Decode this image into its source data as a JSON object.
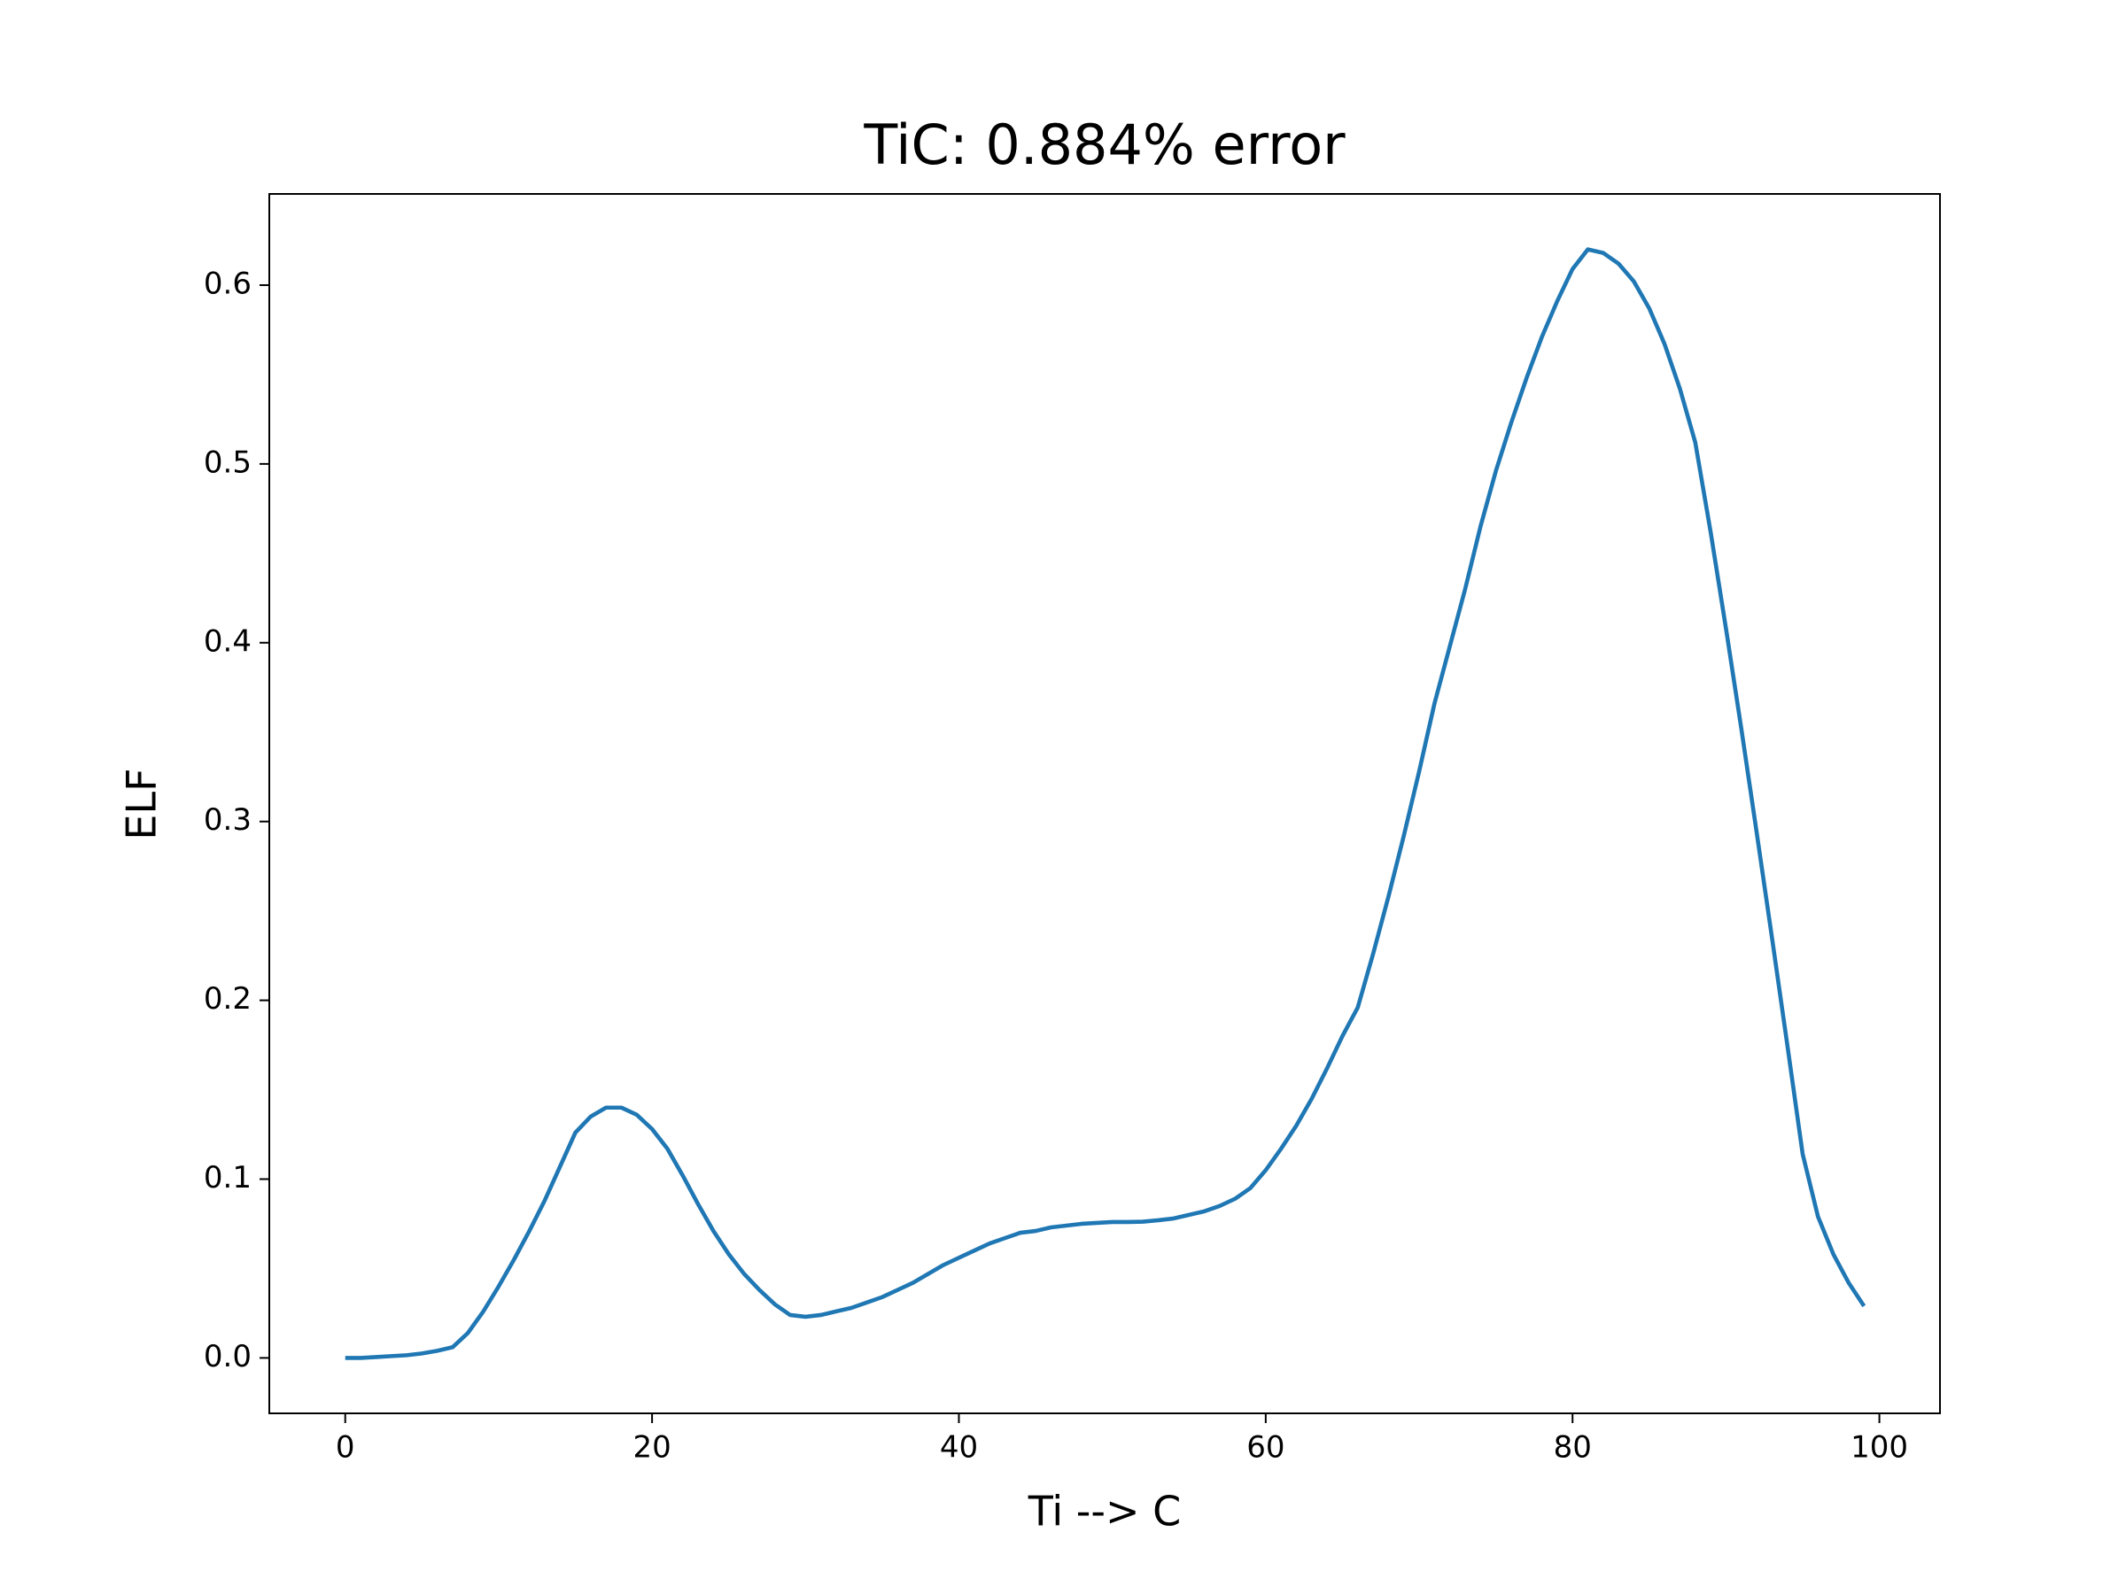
{
  "chart_data": {
    "type": "line",
    "title": "TiC: 0.884% error",
    "xlabel": "Ti --> C",
    "ylabel": "ELF",
    "x": [
      0,
      1,
      2,
      3,
      4,
      5,
      6,
      7,
      8,
      9,
      10,
      11,
      12,
      13,
      14,
      15,
      16,
      17,
      18,
      19,
      20,
      21,
      22,
      23,
      24,
      25,
      26,
      27,
      28,
      29,
      30,
      31,
      32,
      33,
      34,
      35,
      36,
      37,
      38,
      39,
      40,
      41,
      42,
      43,
      44,
      45,
      46,
      47,
      48,
      49,
      50,
      51,
      52,
      53,
      54,
      55,
      56,
      57,
      58,
      59,
      60,
      61,
      62,
      63,
      64,
      65,
      66,
      67,
      68,
      69,
      70,
      71,
      72,
      73,
      74,
      75,
      76,
      77,
      78,
      79,
      80,
      81,
      82,
      83,
      84,
      85,
      86,
      87,
      88,
      89,
      90,
      91,
      92,
      93,
      94,
      95,
      96,
      97,
      98,
      99
    ],
    "series": [
      {
        "color": "#1f77b4",
        "values": [
          0.0,
          0.0,
          0.0005,
          0.001,
          0.0015,
          0.0025,
          0.004,
          0.006,
          0.014,
          0.026,
          0.04,
          0.055,
          0.071,
          0.088,
          0.107,
          0.126,
          0.135,
          0.14,
          0.14,
          0.136,
          0.128,
          0.117,
          0.102,
          0.086,
          0.071,
          0.058,
          0.047,
          0.038,
          0.03,
          0.024,
          0.023,
          0.024,
          0.026,
          0.028,
          0.031,
          0.034,
          0.038,
          0.042,
          0.047,
          0.052,
          0.056,
          0.06,
          0.064,
          0.067,
          0.07,
          0.071,
          0.073,
          0.074,
          0.075,
          0.0755,
          0.076,
          0.076,
          0.0762,
          0.077,
          0.078,
          0.08,
          0.082,
          0.085,
          0.089,
          0.095,
          0.105,
          0.117,
          0.13,
          0.145,
          0.162,
          0.18,
          0.196,
          0.226,
          0.258,
          0.292,
          0.328,
          0.366,
          0.398,
          0.43,
          0.465,
          0.496,
          0.523,
          0.548,
          0.571,
          0.591,
          0.609,
          0.62,
          0.618,
          0.612,
          0.602,
          0.587,
          0.567,
          0.542,
          0.512,
          0.462,
          0.408,
          0.352,
          0.294,
          0.235,
          0.175,
          0.114,
          0.079,
          0.058,
          0.042,
          0.029
        ]
      }
    ],
    "xlim": [
      -4.95,
      103.95
    ],
    "ylim": [
      -0.031,
      0.651
    ],
    "xticks": [
      0,
      20,
      40,
      60,
      80,
      100
    ],
    "yticks": [
      {
        "value": 0.0,
        "label": "0.0"
      },
      0.1,
      0.2,
      0.3,
      0.4,
      0.5,
      0.6
    ]
  }
}
